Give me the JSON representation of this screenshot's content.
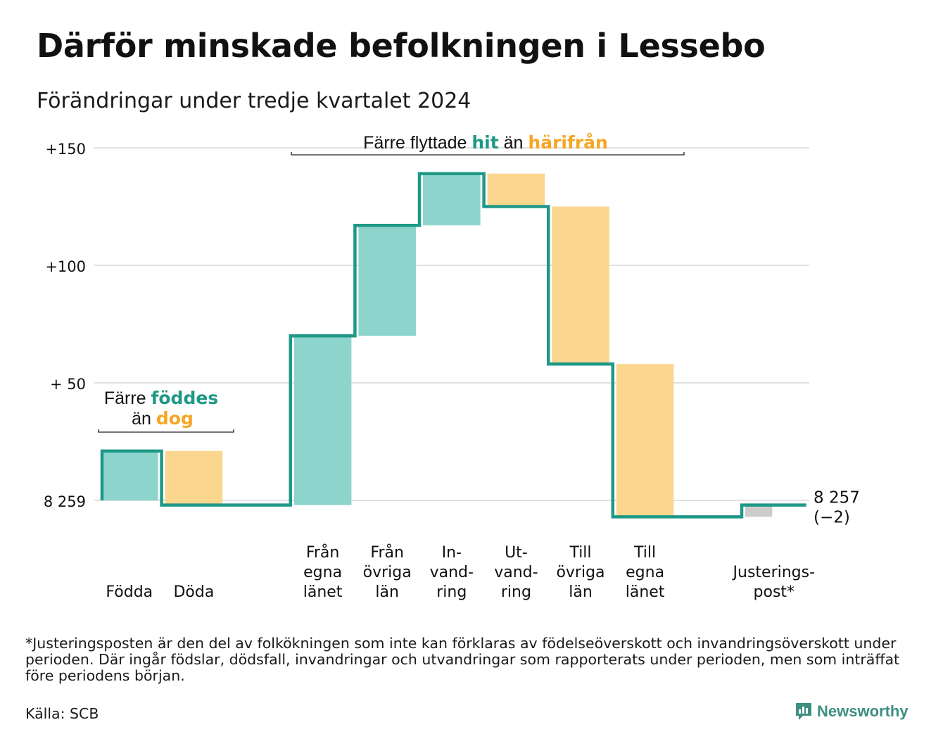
{
  "title": "Därför minskade befolkningen i Lessebo",
  "subtitle": "Förändringar under tredje kvartalet 2024",
  "colors": {
    "increase": "#8dd5cc",
    "decrease": "#fad68f",
    "adjustment": "#cccccc",
    "step_line": "#1e9887",
    "teal_text": "#1e9887",
    "orange_text": "#f5a623",
    "grid": "#e0e0e0"
  },
  "chart_data": {
    "type": "waterfall",
    "title": "Därför minskade befolkningen i Lessebo",
    "subtitle": "Förändringar under tredje kvartalet 2024",
    "start_value": 8259,
    "end_value": 8257,
    "net_change": -2,
    "y_tick_labels": [
      "+150",
      "+100",
      "+ 50",
      "8 259"
    ],
    "y_ticks": [
      150,
      100,
      50,
      0
    ],
    "ylim": [
      -10,
      153
    ],
    "grid": true,
    "steps": [
      {
        "label": "Födda",
        "value": 21,
        "kind": "increase"
      },
      {
        "label": "Döda",
        "value": -23,
        "kind": "decrease"
      },
      {
        "label": "",
        "value": 0,
        "kind": "gap"
      },
      {
        "label": "Från egna länet",
        "label_lines": [
          "Från",
          "egna",
          "länet"
        ],
        "value": 72,
        "kind": "increase"
      },
      {
        "label": "Från övriga län",
        "label_lines": [
          "Från",
          "övriga",
          "län"
        ],
        "value": 47,
        "kind": "increase"
      },
      {
        "label": "In-vandring",
        "label_lines": [
          "In-",
          "vand-",
          "ring"
        ],
        "value": 22,
        "kind": "increase"
      },
      {
        "label": "Ut-vandring",
        "label_lines": [
          "Ut-",
          "vand-",
          "ring"
        ],
        "value": -14,
        "kind": "decrease"
      },
      {
        "label": "Till övriga län",
        "label_lines": [
          "Till",
          "övriga",
          "län"
        ],
        "value": -67,
        "kind": "decrease"
      },
      {
        "label": "Till egna länet",
        "label_lines": [
          "Till",
          "egna",
          "länet"
        ],
        "value": -65,
        "kind": "decrease"
      },
      {
        "label": "",
        "value": 0,
        "kind": "gap"
      },
      {
        "label": "Justerings-post*",
        "label_lines": [
          "Justerings-",
          "post*"
        ],
        "value": 5,
        "kind": "adjustment"
      }
    ],
    "end_label": [
      "8 257",
      "(−2)"
    ],
    "annotations": [
      {
        "parts": [
          {
            "text": "Färre ",
            "style": "plain"
          },
          {
            "text": "föddes",
            "style": "teal"
          }
        ],
        "line2": [
          {
            "text": "än ",
            "style": "plain"
          },
          {
            "text": "dog",
            "style": "orange"
          }
        ]
      },
      {
        "parts": [
          {
            "text": "Färre flyttade ",
            "style": "plain"
          },
          {
            "text": "hit",
            "style": "teal"
          },
          {
            "text": " än ",
            "style": "plain"
          },
          {
            "text": "härifrån",
            "style": "orange"
          }
        ]
      }
    ]
  },
  "footnote": "*Justeringsposten är den del av folkökningen som inte kan förklaras av födelseöverskott och invandringsöverskott under perioden. Där ingår födslar, dödsfall, invandringar och utvandringar som rapporterats under perioden, men som inträffat före periodens början.",
  "source": "Källa: SCB",
  "brand": {
    "name": "Newsworthy",
    "icon": "newsworthy-logo-icon"
  }
}
